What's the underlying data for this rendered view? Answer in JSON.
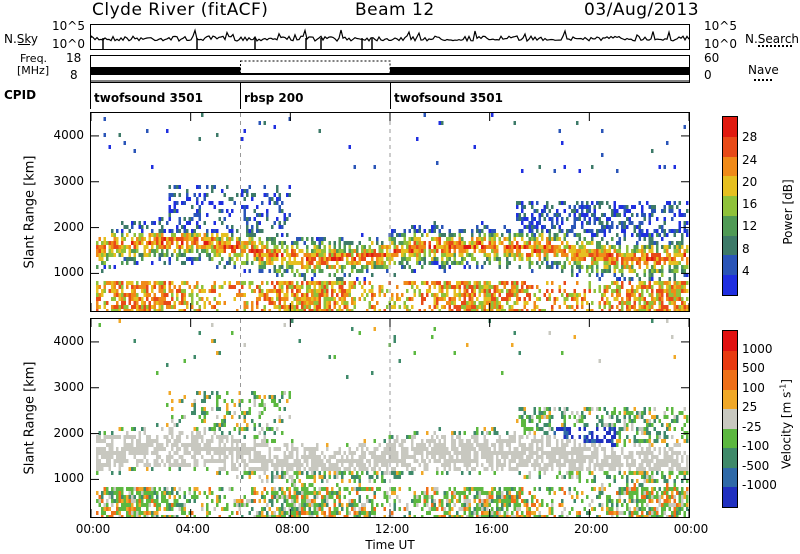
{
  "header": {
    "station": "Clyde River (fitACF)",
    "beam": "Beam 12",
    "date": "03/Aug/2013"
  },
  "noise_panel": {
    "left_label": "N.Sky",
    "right_label": "N.Search",
    "left_ticks": [
      "10^5",
      "10^0"
    ],
    "right_ticks": [
      "10^5",
      "10^0"
    ]
  },
  "freq_panel": {
    "left_label_1": "Freq.",
    "left_label_2": "[MHz]",
    "right_label": "Nave",
    "left_ticks": [
      "18",
      "8"
    ],
    "right_ticks": [
      "60",
      "0"
    ]
  },
  "cpid": {
    "label": "CPID",
    "segments": [
      {
        "name": "twofsound 3501",
        "start_h": 0,
        "end_h": 6
      },
      {
        "name": "rbsp 200",
        "start_h": 6,
        "end_h": 12
      },
      {
        "name": "twofsound 3501",
        "start_h": 12,
        "end_h": 24
      }
    ]
  },
  "chart_data": [
    {
      "type": "heatmap",
      "title": "Power",
      "xlabel": "Time UT",
      "ylabel": "Slant Range [km]",
      "x_ticks": [
        "00:00",
        "04:00",
        "08:00",
        "12:00",
        "16:00",
        "20:00",
        "00:00"
      ],
      "y_ticks": [
        1000,
        2000,
        3000,
        4000
      ],
      "ylim": [
        180,
        4500
      ],
      "xlim_hours": [
        0,
        24
      ],
      "colorbar": {
        "label": "Power [dB]",
        "ticks": [
          4,
          8,
          12,
          16,
          20,
          24,
          28
        ],
        "range": [
          0,
          30
        ],
        "colors": [
          "#1f2fe0",
          "#2a55b8",
          "#3d7a68",
          "#4f9a55",
          "#8fc23a",
          "#e6c020",
          "#f08a18",
          "#e84a18",
          "#e01a10"
        ]
      }
    },
    {
      "type": "heatmap",
      "title": "Velocity",
      "xlabel": "Time UT",
      "ylabel": "Slant Range [km]",
      "x_ticks": [
        "00:00",
        "04:00",
        "08:00",
        "12:00",
        "16:00",
        "20:00",
        "00:00"
      ],
      "y_ticks": [
        1000,
        2000,
        3000,
        4000
      ],
      "ylim": [
        180,
        4500
      ],
      "xlim_hours": [
        0,
        24
      ],
      "colorbar": {
        "label": "Velocity [m s^-1]",
        "ticks": [
          "1000",
          "500",
          "100",
          "25",
          "-25",
          "-100",
          "-500",
          "-1000"
        ],
        "colors": [
          "#2030c0",
          "#2f6aa8",
          "#3f8a6a",
          "#5cb840",
          "#c8c8c0",
          "#f0a828",
          "#ef7018",
          "#e83a10",
          "#e01010"
        ]
      }
    }
  ]
}
